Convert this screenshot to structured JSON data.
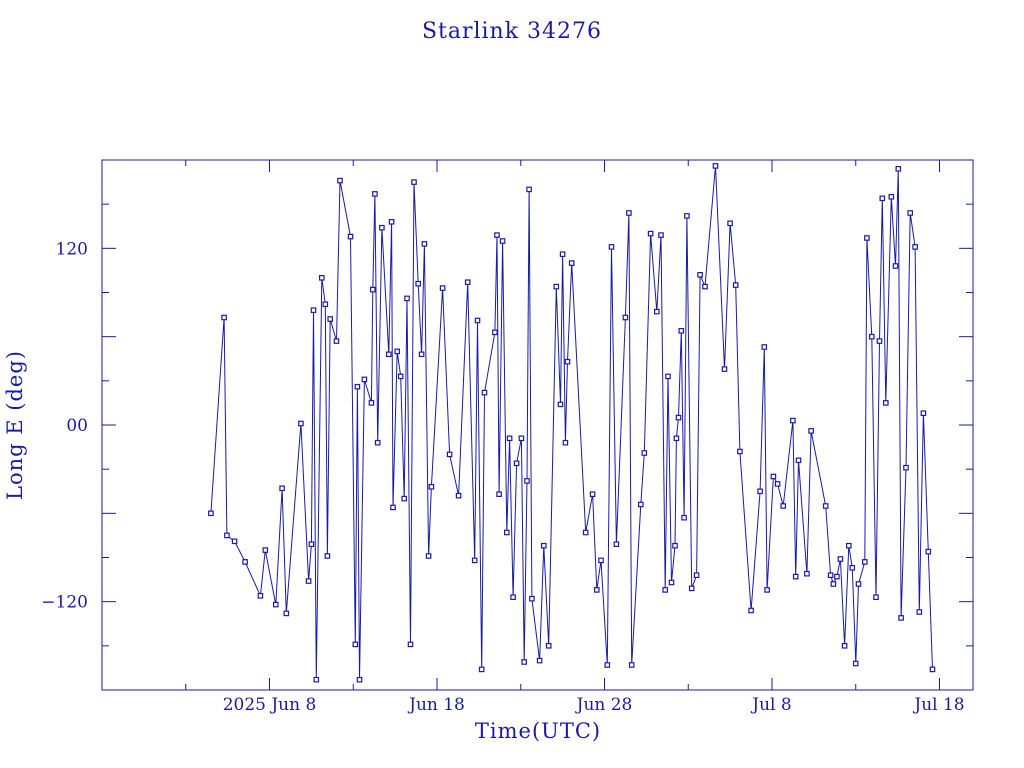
{
  "chart_data": {
    "type": "line",
    "title": "Starlink 34276",
    "xlabel": "Time(UTC)",
    "ylabel": "Long E (deg)",
    "x_unit": "date (UTC)",
    "xlim": [
      "2025-05-29",
      "2025-07-20"
    ],
    "ylim": [
      -180,
      180
    ],
    "x_ticks": [
      {
        "date": "2025-06-08",
        "label": "2025 Jun  8"
      },
      {
        "date": "2025-06-18",
        "label": "Jun 18"
      },
      {
        "date": "2025-06-28",
        "label": "Jun 28"
      },
      {
        "date": "2025-07-08",
        "label": "Jul  8"
      },
      {
        "date": "2025-07-18",
        "label": "Jul 18"
      }
    ],
    "y_ticks": [
      {
        "value": 120,
        "label": "120"
      },
      {
        "value": 0,
        "label": "00"
      },
      {
        "value": -120,
        "label": "−120"
      }
    ],
    "grid": false,
    "color": "#1a1aa8",
    "series": [
      {
        "points": [
          [
            "2025-06-04T12:00",
            -60
          ],
          [
            "2025-06-05T07:00",
            73
          ],
          [
            "2025-06-05T11:00",
            -75
          ],
          [
            "2025-06-05T22:00",
            -79
          ],
          [
            "2025-06-06T13:00",
            -93
          ],
          [
            "2025-06-07T11:00",
            -116
          ],
          [
            "2025-06-07T18:00",
            -85
          ],
          [
            "2025-06-08T09:00",
            -122
          ],
          [
            "2025-06-08T18:00",
            -43
          ],
          [
            "2025-06-09T00:00",
            -128
          ],
          [
            "2025-06-09T21:00",
            1
          ],
          [
            "2025-06-10T08:00",
            -106
          ],
          [
            "2025-06-10T12:00",
            -81
          ],
          [
            "2025-06-10T15:00",
            78
          ],
          [
            "2025-06-10T19:00",
            -173
          ],
          [
            "2025-06-11T03:00",
            100
          ],
          [
            "2025-06-11T08:00",
            82
          ],
          [
            "2025-06-11T11:00",
            -89
          ],
          [
            "2025-06-11T15:00",
            72
          ],
          [
            "2025-06-12T00:00",
            57
          ],
          [
            "2025-06-12T05:00",
            166
          ],
          [
            "2025-06-12T20:00",
            128
          ],
          [
            "2025-06-13T03:00",
            -149
          ],
          [
            "2025-06-13T06:00",
            26
          ],
          [
            "2025-06-13T09:00",
            -173
          ],
          [
            "2025-06-13T16:00",
            31
          ],
          [
            "2025-06-14T02:00",
            15
          ],
          [
            "2025-06-14T04:00",
            92
          ],
          [
            "2025-06-14T07:00",
            157
          ],
          [
            "2025-06-14T11:00",
            -12
          ],
          [
            "2025-06-14T17:00",
            134
          ],
          [
            "2025-06-15T03:00",
            48
          ],
          [
            "2025-06-15T07:00",
            138
          ],
          [
            "2025-06-15T09:00",
            -56
          ],
          [
            "2025-06-15T15:00",
            50
          ],
          [
            "2025-06-15T20:00",
            33
          ],
          [
            "2025-06-16T01:00",
            -50
          ],
          [
            "2025-06-16T05:00",
            86
          ],
          [
            "2025-06-16T10:00",
            -149
          ],
          [
            "2025-06-16T15:00",
            165
          ],
          [
            "2025-06-16T21:00",
            96
          ],
          [
            "2025-06-17T02:00",
            48
          ],
          [
            "2025-06-17T06:00",
            123
          ],
          [
            "2025-06-17T12:00",
            -89
          ],
          [
            "2025-06-17T16:00",
            -42
          ],
          [
            "2025-06-18T08:00",
            93
          ],
          [
            "2025-06-18T18:00",
            -20
          ],
          [
            "2025-06-19T07:00",
            -48
          ],
          [
            "2025-06-19T20:00",
            97
          ],
          [
            "2025-06-20T06:00",
            -92
          ],
          [
            "2025-06-20T10:00",
            71
          ],
          [
            "2025-06-20T16:00",
            -166
          ],
          [
            "2025-06-20T20:00",
            22
          ],
          [
            "2025-06-21T11:00",
            63
          ],
          [
            "2025-06-21T14:00",
            129
          ],
          [
            "2025-06-21T17:00",
            -47
          ],
          [
            "2025-06-21T22:00",
            125
          ],
          [
            "2025-06-22T04:00",
            -73
          ],
          [
            "2025-06-22T08:00",
            -9
          ],
          [
            "2025-06-22T13:00",
            -117
          ],
          [
            "2025-06-22T18:00",
            -26
          ],
          [
            "2025-06-23T01:00",
            -9
          ],
          [
            "2025-06-23T05:00",
            -161
          ],
          [
            "2025-06-23T09:00",
            -38
          ],
          [
            "2025-06-23T12:00",
            160
          ],
          [
            "2025-06-23T16:00",
            -118
          ],
          [
            "2025-06-24T03:00",
            -160
          ],
          [
            "2025-06-24T09:00",
            -82
          ],
          [
            "2025-06-24T16:00",
            -150
          ],
          [
            "2025-06-25T03:00",
            94
          ],
          [
            "2025-06-25T09:00",
            14
          ],
          [
            "2025-06-25T12:00",
            116
          ],
          [
            "2025-06-25T16:00",
            -12
          ],
          [
            "2025-06-25T19:00",
            43
          ],
          [
            "2025-06-26T01:00",
            110
          ],
          [
            "2025-06-26T21:00",
            -73
          ],
          [
            "2025-06-27T07:00",
            -47
          ],
          [
            "2025-06-27T13:00",
            -112
          ],
          [
            "2025-06-27T19:00",
            -92
          ],
          [
            "2025-06-28T04:00",
            -163
          ],
          [
            "2025-06-28T10:00",
            121
          ],
          [
            "2025-06-28T17:00",
            -81
          ],
          [
            "2025-06-29T06:00",
            73
          ],
          [
            "2025-06-29T11:00",
            144
          ],
          [
            "2025-06-29T15:00",
            -163
          ],
          [
            "2025-06-30T04:00",
            -54
          ],
          [
            "2025-06-30T09:00",
            -19
          ],
          [
            "2025-06-30T18:00",
            130
          ],
          [
            "2025-07-01T03:00",
            77
          ],
          [
            "2025-07-01T09:00",
            129
          ],
          [
            "2025-07-01T15:00",
            -112
          ],
          [
            "2025-07-01T19:00",
            33
          ],
          [
            "2025-07-02T00:00",
            -107
          ],
          [
            "2025-07-02T05:00",
            -82
          ],
          [
            "2025-07-02T07:00",
            -9
          ],
          [
            "2025-07-02T10:00",
            5
          ],
          [
            "2025-07-02T14:00",
            64
          ],
          [
            "2025-07-02T18:00",
            -63
          ],
          [
            "2025-07-02T22:00",
            142
          ],
          [
            "2025-07-03T05:00",
            -111
          ],
          [
            "2025-07-03T12:00",
            -102
          ],
          [
            "2025-07-03T17:00",
            102
          ],
          [
            "2025-07-04T00:00",
            94
          ],
          [
            "2025-07-04T15:00",
            176
          ],
          [
            "2025-07-05T04:00",
            38
          ],
          [
            "2025-07-05T12:00",
            137
          ],
          [
            "2025-07-05T20:00",
            95
          ],
          [
            "2025-07-06T02:00",
            -18
          ],
          [
            "2025-07-06T18:00",
            -126
          ],
          [
            "2025-07-07T07:00",
            -45
          ],
          [
            "2025-07-07T13:00",
            53
          ],
          [
            "2025-07-07T17:00",
            -112
          ],
          [
            "2025-07-08T02:00",
            -35
          ],
          [
            "2025-07-08T08:00",
            -40
          ],
          [
            "2025-07-08T16:00",
            -55
          ],
          [
            "2025-07-09T06:00",
            3
          ],
          [
            "2025-07-09T10:00",
            -103
          ],
          [
            "2025-07-09T14:00",
            -24
          ],
          [
            "2025-07-10T02:00",
            -101
          ],
          [
            "2025-07-10T08:00",
            -4
          ],
          [
            "2025-07-11T05:00",
            -55
          ],
          [
            "2025-07-11T12:00",
            -102
          ],
          [
            "2025-07-11T16:00",
            -108
          ],
          [
            "2025-07-11T21:00",
            -103
          ],
          [
            "2025-07-12T02:00",
            -91
          ],
          [
            "2025-07-12T08:00",
            -150
          ],
          [
            "2025-07-12T14:00",
            -82
          ],
          [
            "2025-07-12T19:00",
            -97
          ],
          [
            "2025-07-13T00:00",
            -162
          ],
          [
            "2025-07-13T04:00",
            -108
          ],
          [
            "2025-07-13T13:00",
            -93
          ],
          [
            "2025-07-13T16:00",
            127
          ],
          [
            "2025-07-13T23:00",
            60
          ],
          [
            "2025-07-14T05:00",
            -117
          ],
          [
            "2025-07-14T10:00",
            57
          ],
          [
            "2025-07-14T14:00",
            154
          ],
          [
            "2025-07-14T19:00",
            15
          ],
          [
            "2025-07-15T03:00",
            155
          ],
          [
            "2025-07-15T09:00",
            108
          ],
          [
            "2025-07-15T13:00",
            174
          ],
          [
            "2025-07-15T17:00",
            -131
          ],
          [
            "2025-07-16T00:00",
            -29
          ],
          [
            "2025-07-16T06:00",
            144
          ],
          [
            "2025-07-16T13:00",
            121
          ],
          [
            "2025-07-16T19:00",
            -127
          ],
          [
            "2025-07-17T01:00",
            8
          ],
          [
            "2025-07-17T08:00",
            -86
          ],
          [
            "2025-07-17T14:00",
            -166
          ]
        ]
      }
    ]
  }
}
